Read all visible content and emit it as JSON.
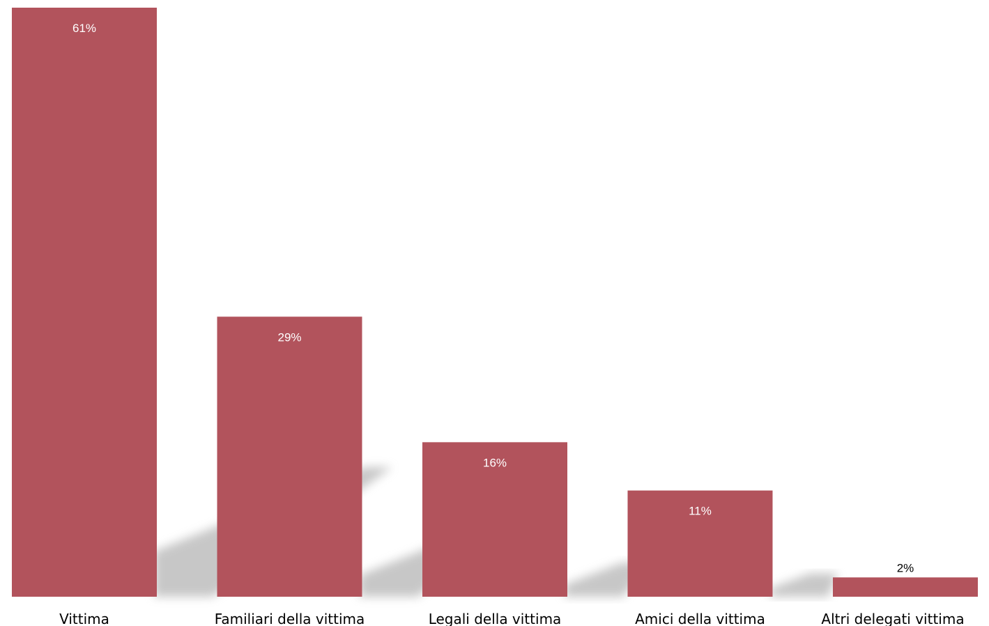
{
  "chart_data": {
    "type": "bar",
    "categories": [
      "Vittima",
      "Familiari della vittima",
      "Legali della vittima",
      "Amici della vittima",
      "Altri delegati vittima"
    ],
    "values": [
      61,
      29,
      16,
      11,
      2
    ],
    "data_labels": [
      "61%",
      "29%",
      "16%",
      "11%",
      "2%"
    ],
    "title": "",
    "xlabel": "",
    "ylabel": "",
    "ylim": [
      0,
      61
    ],
    "grid": false,
    "legend": "none",
    "bar_color": "#b2535c",
    "label_inside_color": "#ffffff",
    "label_outside_color": "#000000"
  }
}
